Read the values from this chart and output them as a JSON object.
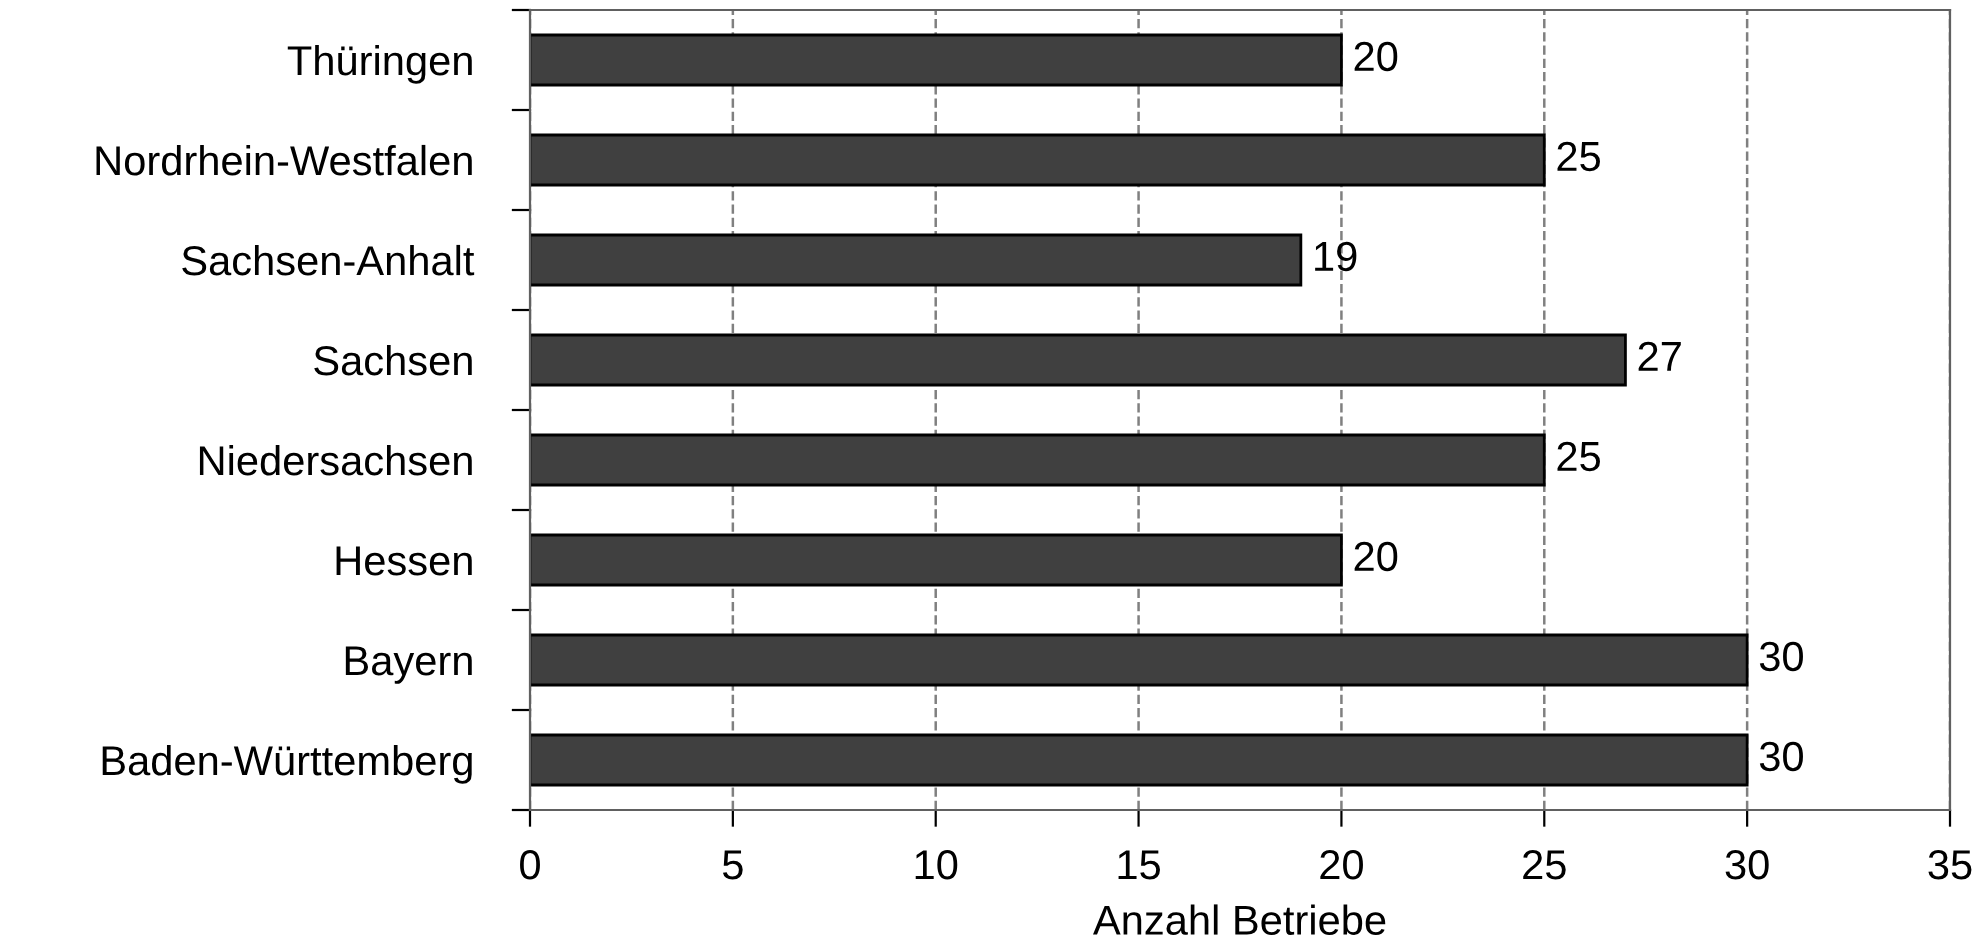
{
  "chart_data": {
    "type": "bar",
    "orientation": "horizontal",
    "xlabel": "Anzahl Betriebe",
    "categories": [
      "Thüringen",
      "Nordrhein-Westfalen",
      "Sachsen-Anhalt",
      "Sachsen",
      "Niedersachsen",
      "Hessen",
      "Bayern",
      "Baden-Württemberg"
    ],
    "values": [
      20,
      25,
      19,
      27,
      25,
      20,
      30,
      30
    ],
    "color": "#404040",
    "xlim": [
      0,
      35
    ],
    "xticks": [
      0,
      5,
      10,
      15,
      20,
      25,
      30,
      35
    ],
    "grid": "x",
    "line_style": "dashed",
    "data_labels": true
  }
}
